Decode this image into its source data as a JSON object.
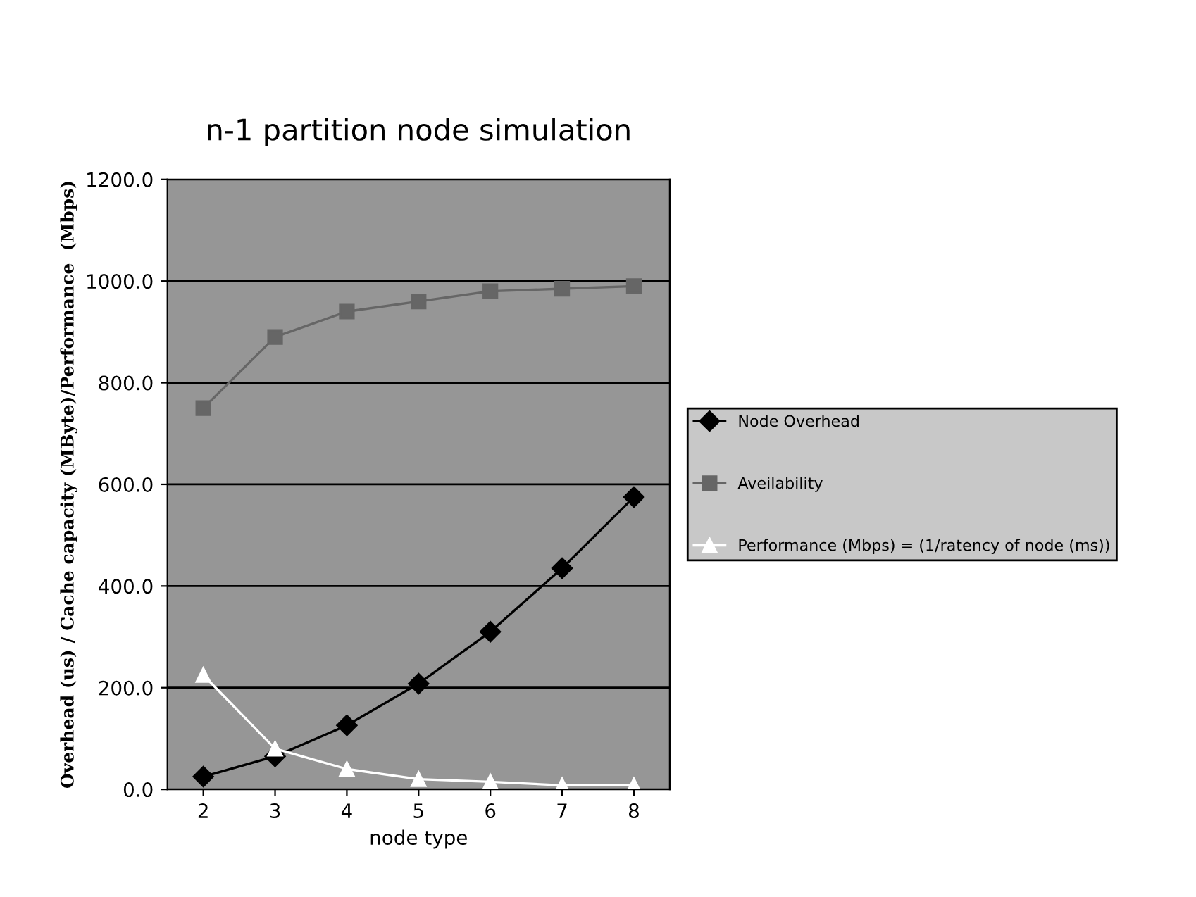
{
  "chart_data": {
    "type": "line",
    "title": "n-1 partition node simulation",
    "xlabel": "node type",
    "ylabel": "Overhead (us) / Cache capacity (MByte)/Performance  (Mbps)",
    "categories": [
      "2",
      "3",
      "4",
      "5",
      "6",
      "7",
      "8"
    ],
    "series": [
      {
        "name": "Node Overhead",
        "color": "#000000",
        "marker": "diamond",
        "values": [
          25,
          65,
          126,
          208,
          310,
          435,
          575
        ]
      },
      {
        "name": "Aveilability",
        "color": "#666666",
        "marker": "square",
        "values": [
          750,
          890,
          940,
          960,
          980,
          985,
          990
        ]
      },
      {
        "name": "Performance (Mbps) = (1/ratency of node (ms))",
        "color": "#ffffff",
        "marker": "triangle",
        "values": [
          225,
          80,
          40,
          20,
          15,
          8,
          8
        ]
      }
    ],
    "ylim": [
      0,
      1200
    ],
    "yticks": [
      {
        "value": 0,
        "label": "0.0"
      },
      {
        "value": 200,
        "label": "200.0"
      },
      {
        "value": 400,
        "label": "400.0"
      },
      {
        "value": 600,
        "label": "600.0"
      },
      {
        "value": 800,
        "label": "800.0"
      },
      {
        "value": 1000,
        "label": "1000.0"
      },
      {
        "value": 1200,
        "label": "1200.0"
      }
    ],
    "grid": "y",
    "legend": "right"
  }
}
